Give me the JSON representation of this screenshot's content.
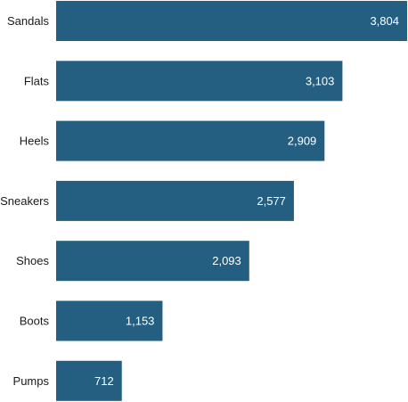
{
  "colors": {
    "bar": "#245f82",
    "background": "#ffffff",
    "value_text": "#ffffff",
    "category_text": "#1a1a1a"
  },
  "chart_data": {
    "type": "bar",
    "orientation": "horizontal",
    "title": "",
    "xlabel": "",
    "ylabel": "",
    "categories": [
      "Sandals",
      "Flats",
      "Heels",
      "Sneakers",
      "Shoes",
      "Boots",
      "Pumps"
    ],
    "values": [
      3804,
      3103,
      2909,
      2577,
      2093,
      1153,
      712
    ],
    "value_labels": [
      "3,804",
      "3,103",
      "2,909",
      "2,577",
      "2,093",
      "1,153",
      "712"
    ],
    "xlim": [
      0,
      3804
    ],
    "grid": false,
    "legend": "none",
    "axes_visible": false
  }
}
